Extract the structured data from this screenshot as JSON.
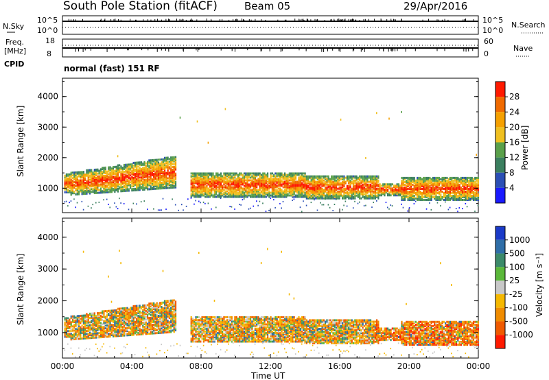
{
  "header": {
    "station": "South Pole Station (fitACF)",
    "beam": "Beam 05",
    "date": "29/Apr/2016"
  },
  "side_labels": {
    "nsky": "N.Sky",
    "freq_line1": "Freq.",
    "freq_line2": "[MHz]",
    "cpid": "CPID",
    "nsearch": "N.Search",
    "nave": "Nave",
    "exp_min": "10^5",
    "exp_zero": "10^0",
    "freq_top": "18",
    "freq_bottom": "8",
    "nave_top": "60",
    "nave_bottom": "0"
  },
  "cpid_text": "normal (fast) 151 RF",
  "chart_data": [
    {
      "type": "heatmap",
      "name": "power",
      "ylabel": "Slant Range [km]",
      "colorbar_label": "Power [dB]",
      "ylim": [
        200,
        4600
      ],
      "yticks": [
        "1000",
        "2000",
        "3000",
        "4000"
      ],
      "colorbar_ticks": [
        "4",
        "8",
        "12",
        "16",
        "20",
        "24",
        "28"
      ],
      "colors": [
        "#1a1aff",
        "#2b4fb5",
        "#3b7f5f",
        "#5aa04a",
        "#f0c020",
        "#f5a000",
        "#f06a00",
        "#ff1a00"
      ]
    },
    {
      "type": "heatmap",
      "name": "velocity",
      "ylabel": "Slant Range [km]",
      "xlabel": "Time UT",
      "colorbar_label": "Velocity [m s⁻¹]",
      "ylim": [
        200,
        4600
      ],
      "yticks": [
        "1000",
        "2000",
        "3000",
        "4000"
      ],
      "xticks": [
        "00:00",
        "04:00",
        "08:00",
        "12:00",
        "16:00",
        "20:00",
        "00:00"
      ],
      "colorbar_ticks": [
        "1000",
        "500",
        "100",
        "25",
        "-25",
        "-100",
        "-500",
        "-1000"
      ],
      "colors": [
        "#1a3ac8",
        "#2f6ea8",
        "#3c8a6a",
        "#5bb83a",
        "#c8c8c8",
        "#f5b800",
        "#f08c00",
        "#f05a00",
        "#ff1a00"
      ]
    }
  ]
}
